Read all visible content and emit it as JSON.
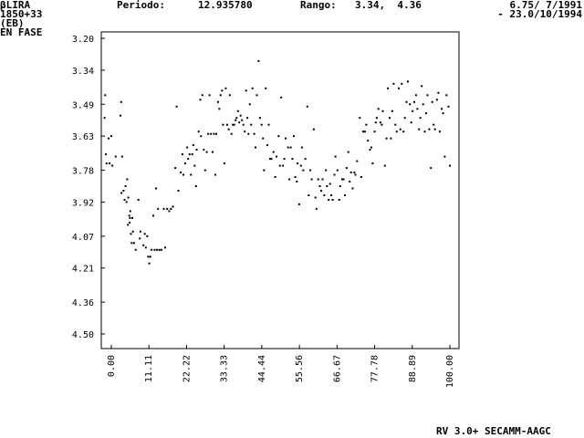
{
  "header": {
    "star_name": "βLIRA",
    "star_coords": "1850+33",
    "star_type": "(EB)",
    "mode": "EN FASE",
    "period_label": "Periodo:",
    "period_value": "12.935780",
    "range_label": "Rango:",
    "range_value": "3.34,  4.36",
    "date_start": "6.75/ 7/1991",
    "date_end": "- 23.0/10/1994"
  },
  "footer": {
    "software": "RV 3.0+ SECAMM-AAGC"
  },
  "chart_data": {
    "type": "scatter",
    "title": "",
    "xlabel": "",
    "ylabel": "",
    "xlim": [
      0,
      100
    ],
    "ylim": [
      4.57,
      3.16
    ],
    "y_inverted": true,
    "x_ticks": [
      "0.00",
      "11.11",
      "22.22",
      "33.33",
      "44.44",
      "55.56",
      "66.67",
      "77.78",
      "88.89",
      "100.00"
    ],
    "y_ticks": [
      "3.20",
      "3.34",
      "3.49",
      "3.63",
      "3.78",
      "3.92",
      "4.07",
      "4.21",
      "4.36",
      "4.50"
    ],
    "grid": false,
    "points": [
      [
        -2.0,
        3.55
      ],
      [
        -1.8,
        3.45
      ],
      [
        -1.6,
        3.71
      ],
      [
        -1.4,
        3.75
      ],
      [
        -0.8,
        3.64
      ],
      [
        -0.5,
        3.75
      ],
      [
        0.0,
        3.63
      ],
      [
        0.3,
        3.76
      ],
      [
        1.3,
        3.72
      ],
      [
        2.7,
        3.54
      ],
      [
        2.9,
        3.48
      ],
      [
        3.2,
        3.72
      ],
      [
        3.0,
        3.88
      ],
      [
        3.6,
        3.87
      ],
      [
        3.9,
        3.91
      ],
      [
        4.2,
        3.85
      ],
      [
        4.5,
        3.92
      ],
      [
        4.7,
        3.82
      ],
      [
        4.9,
        4.02
      ],
      [
        5.0,
        3.9
      ],
      [
        5.3,
        3.98
      ],
      [
        5.5,
        3.99
      ],
      [
        5.4,
        4.01
      ],
      [
        5.6,
        3.96
      ],
      [
        5.8,
        4.06
      ],
      [
        6.0,
        4.1
      ],
      [
        6.2,
        3.99
      ],
      [
        6.4,
        4.05
      ],
      [
        6.7,
        4.1
      ],
      [
        7.2,
        4.13
      ],
      [
        8.0,
        3.91
      ],
      [
        8.4,
        4.08
      ],
      [
        8.6,
        4.05
      ],
      [
        9.5,
        4.11
      ],
      [
        9.9,
        4.06
      ],
      [
        10.2,
        4.12
      ],
      [
        10.6,
        4.07
      ],
      [
        10.9,
        4.16
      ],
      [
        11.2,
        4.19
      ],
      [
        11.5,
        4.16
      ],
      [
        11.9,
        4.13
      ],
      [
        12.4,
        3.98
      ],
      [
        12.8,
        4.13
      ],
      [
        13.2,
        3.86
      ],
      [
        13.5,
        4.13
      ],
      [
        13.8,
        3.95
      ],
      [
        14.2,
        4.13
      ],
      [
        14.8,
        4.13
      ],
      [
        15.5,
        3.95
      ],
      [
        15.9,
        4.12
      ],
      [
        16.5,
        3.95
      ],
      [
        17.1,
        3.96
      ],
      [
        17.6,
        3.95
      ],
      [
        18.2,
        3.94
      ],
      [
        18.9,
        3.77
      ],
      [
        19.3,
        3.5
      ],
      [
        19.8,
        3.87
      ],
      [
        20.5,
        3.79
      ],
      [
        21.0,
        3.71
      ],
      [
        21.3,
        3.8
      ],
      [
        21.8,
        3.75
      ],
      [
        22.4,
        3.68
      ],
      [
        22.7,
        3.73
      ],
      [
        23.1,
        3.71
      ],
      [
        23.5,
        3.8
      ],
      [
        23.9,
        3.71
      ],
      [
        24.2,
        3.67
      ],
      [
        24.6,
        3.76
      ],
      [
        25.0,
        3.85
      ],
      [
        25.2,
        3.69
      ],
      [
        25.8,
        3.61
      ],
      [
        26.3,
        3.47
      ],
      [
        26.5,
        3.63
      ],
      [
        26.9,
        3.45
      ],
      [
        27.3,
        3.69
      ],
      [
        27.7,
        3.78
      ],
      [
        28.2,
        3.7
      ],
      [
        28.6,
        3.62
      ],
      [
        29.0,
        3.45
      ],
      [
        29.4,
        3.62
      ],
      [
        29.9,
        3.7
      ],
      [
        30.3,
        3.62
      ],
      [
        30.7,
        3.8
      ],
      [
        31.0,
        3.62
      ],
      [
        31.5,
        3.48
      ],
      [
        31.9,
        3.51
      ],
      [
        32.3,
        3.45
      ],
      [
        32.7,
        3.43
      ],
      [
        33.0,
        3.58
      ],
      [
        33.4,
        3.75
      ],
      [
        33.8,
        3.42
      ],
      [
        34.2,
        3.58
      ],
      [
        34.7,
        3.6
      ],
      [
        35.0,
        3.45
      ],
      [
        35.5,
        3.62
      ],
      [
        35.9,
        3.58
      ],
      [
        36.3,
        3.58
      ],
      [
        36.7,
        3.56
      ],
      [
        37.0,
        3.55
      ],
      [
        37.4,
        3.52
      ],
      [
        37.8,
        3.57
      ],
      [
        38.2,
        3.54
      ],
      [
        38.6,
        3.56
      ],
      [
        39.0,
        3.58
      ],
      [
        39.4,
        3.61
      ],
      [
        39.8,
        3.43
      ],
      [
        40.2,
        3.55
      ],
      [
        40.5,
        3.62
      ],
      [
        40.9,
        3.49
      ],
      [
        41.3,
        3.58
      ],
      [
        41.7,
        3.42
      ],
      [
        42.2,
        3.62
      ],
      [
        42.6,
        3.68
      ],
      [
        43.0,
        3.45
      ],
      [
        43.5,
        3.3
      ],
      [
        43.9,
        3.55
      ],
      [
        44.4,
        3.58
      ],
      [
        44.8,
        3.64
      ],
      [
        45.1,
        3.78
      ],
      [
        45.6,
        3.42
      ],
      [
        46.1,
        3.67
      ],
      [
        46.5,
        3.58
      ],
      [
        46.9,
        3.73
      ],
      [
        47.3,
        3.73
      ],
      [
        47.9,
        3.7
      ],
      [
        48.4,
        3.81
      ],
      [
        48.8,
        3.72
      ],
      [
        49.4,
        3.63
      ],
      [
        49.8,
        3.76
      ],
      [
        50.2,
        3.46
      ],
      [
        50.7,
        3.76
      ],
      [
        51.1,
        3.73
      ],
      [
        51.5,
        3.64
      ],
      [
        52.2,
        3.68
      ],
      [
        52.6,
        3.82
      ],
      [
        53.0,
        3.68
      ],
      [
        53.5,
        3.73
      ],
      [
        53.9,
        3.63
      ],
      [
        54.3,
        3.81
      ],
      [
        54.8,
        3.83
      ],
      [
        55.0,
        3.75
      ],
      [
        55.5,
        3.93
      ],
      [
        56.0,
        3.76
      ],
      [
        56.3,
        3.68
      ],
      [
        56.7,
        3.78
      ],
      [
        57.3,
        3.73
      ],
      [
        57.9,
        3.5
      ],
      [
        58.3,
        3.89
      ],
      [
        58.8,
        3.78
      ],
      [
        59.2,
        3.82
      ],
      [
        59.8,
        3.6
      ],
      [
        60.3,
        3.9
      ],
      [
        60.6,
        3.95
      ],
      [
        61.1,
        3.82
      ],
      [
        61.6,
        3.85
      ],
      [
        62.0,
        3.87
      ],
      [
        62.4,
        3.82
      ],
      [
        62.9,
        3.89
      ],
      [
        63.4,
        3.78
      ],
      [
        63.7,
        3.85
      ],
      [
        64.2,
        3.91
      ],
      [
        64.6,
        3.84
      ],
      [
        65.0,
        3.89
      ],
      [
        65.4,
        3.91
      ],
      [
        65.9,
        3.8
      ],
      [
        66.2,
        3.72
      ],
      [
        66.8,
        3.78
      ],
      [
        67.3,
        3.91
      ],
      [
        67.6,
        3.85
      ],
      [
        68.2,
        3.82
      ],
      [
        68.6,
        3.82
      ],
      [
        69.0,
        3.89
      ],
      [
        69.5,
        3.77
      ],
      [
        70.0,
        3.7
      ],
      [
        70.4,
        3.83
      ],
      [
        70.8,
        3.79
      ],
      [
        71.3,
        3.86
      ],
      [
        71.8,
        3.79
      ],
      [
        72.1,
        3.8
      ],
      [
        72.6,
        3.74
      ],
      [
        73.4,
        3.55
      ],
      [
        73.8,
        3.81
      ],
      [
        74.4,
        3.61
      ],
      [
        74.9,
        3.61
      ],
      [
        75.3,
        3.58
      ],
      [
        75.8,
        3.65
      ],
      [
        76.4,
        3.69
      ],
      [
        76.8,
        3.68
      ],
      [
        77.2,
        3.75
      ],
      [
        77.8,
        3.61
      ],
      [
        78.1,
        3.57
      ],
      [
        78.4,
        3.55
      ],
      [
        78.9,
        3.51
      ],
      [
        79.5,
        3.57
      ],
      [
        79.9,
        3.58
      ],
      [
        80.2,
        3.52
      ],
      [
        80.8,
        3.76
      ],
      [
        81.3,
        3.64
      ],
      [
        81.7,
        3.42
      ],
      [
        82.2,
        3.55
      ],
      [
        82.6,
        3.64
      ],
      [
        83.0,
        3.52
      ],
      [
        83.4,
        3.4
      ],
      [
        83.9,
        3.58
      ],
      [
        84.3,
        3.61
      ],
      [
        84.9,
        3.42
      ],
      [
        85.4,
        3.6
      ],
      [
        85.8,
        3.4
      ],
      [
        86.3,
        3.61
      ],
      [
        86.7,
        3.55
      ],
      [
        87.2,
        3.48
      ],
      [
        87.6,
        3.39
      ],
      [
        88.2,
        3.49
      ],
      [
        88.6,
        3.57
      ],
      [
        89.0,
        3.52
      ],
      [
        89.5,
        3.48
      ],
      [
        90.0,
        3.45
      ],
      [
        90.4,
        3.51
      ],
      [
        90.9,
        3.6
      ],
      [
        91.3,
        3.55
      ],
      [
        91.7,
        3.41
      ],
      [
        92.1,
        3.49
      ],
      [
        92.6,
        3.61
      ],
      [
        93.0,
        3.53
      ],
      [
        93.4,
        3.45
      ],
      [
        93.9,
        3.6
      ],
      [
        94.4,
        3.77
      ],
      [
        94.8,
        3.48
      ],
      [
        95.2,
        3.58
      ],
      [
        95.6,
        3.6
      ],
      [
        96.2,
        3.47
      ],
      [
        96.6,
        3.44
      ],
      [
        97.0,
        3.61
      ],
      [
        97.6,
        3.51
      ],
      [
        98.0,
        3.53
      ],
      [
        98.5,
        3.72
      ],
      [
        99.0,
        3.45
      ],
      [
        99.6,
        3.5
      ],
      [
        100.0,
        3.76
      ]
    ]
  }
}
